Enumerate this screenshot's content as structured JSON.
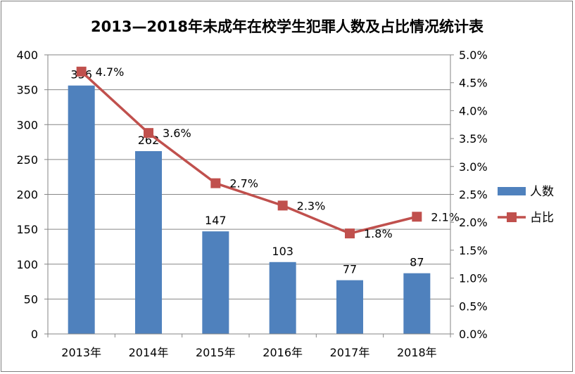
{
  "chart_data": {
    "type": "bar+line",
    "title": "2013—2018年未成年在校学生犯罪人数及占比情况统计表",
    "categories": [
      "2013年",
      "2014年",
      "2015年",
      "2016年",
      "2017年",
      "2018年"
    ],
    "series": [
      {
        "name": "人数",
        "type": "bar",
        "axis": "left",
        "color": "#4f81bd",
        "values": [
          356,
          262,
          147,
          103,
          77,
          87
        ],
        "labels": [
          "356",
          "262",
          "147",
          "103",
          "77",
          "87"
        ]
      },
      {
        "name": "占比",
        "type": "line",
        "axis": "right",
        "color": "#c0504d",
        "values": [
          4.7,
          3.6,
          2.7,
          2.3,
          1.8,
          2.1
        ],
        "labels": [
          "4.7%",
          "3.6%",
          "2.7%",
          "2.3%",
          "1.8%",
          "2.1%"
        ]
      }
    ],
    "left_axis": {
      "ylim": [
        0,
        400
      ],
      "ticks": [
        "0",
        "50",
        "100",
        "150",
        "200",
        "250",
        "300",
        "350",
        "400"
      ]
    },
    "right_axis": {
      "ylim": [
        0,
        5
      ],
      "ticks": [
        "0.0%",
        "0.5%",
        "1.0%",
        "1.5%",
        "2.0%",
        "2.5%",
        "3.0%",
        "3.5%",
        "4.0%",
        "4.5%",
        "5.0%"
      ]
    },
    "grid": true,
    "legend_position": "right"
  }
}
